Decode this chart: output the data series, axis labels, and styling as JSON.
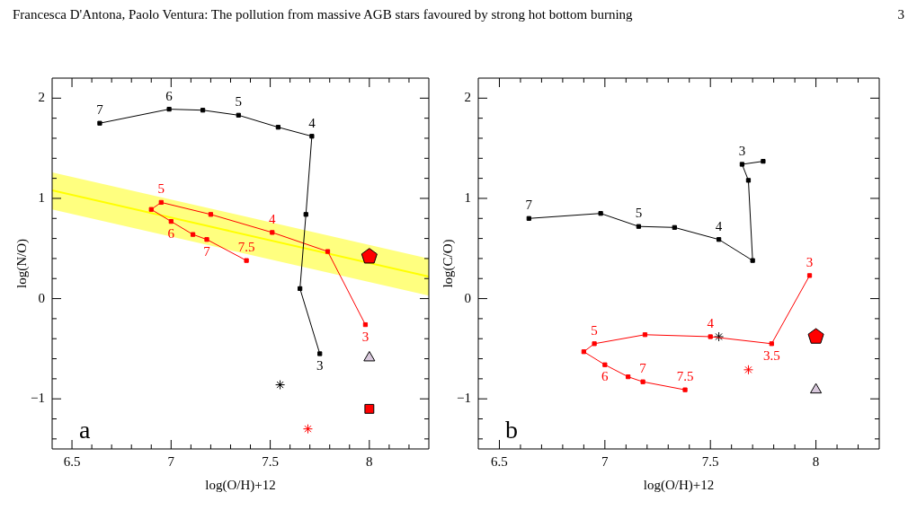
{
  "chart_data": [
    {
      "type": "line",
      "title": "Francesca D'Antona, Paolo Ventura: The pollution from massive AGB stars favoured by strong hot bottom burning",
      "xlabel": "log(O/H)+12",
      "ylabel": "log(N/O)",
      "xlim": [
        6.4,
        8.3
      ],
      "ylim": [
        -1.5,
        2.2
      ],
      "xticks": [
        {
          "value": 6.5,
          "label": "6.5"
        },
        {
          "value": 6.6,
          "label": null
        },
        {
          "value": 6.7,
          "label": null
        },
        {
          "value": 6.8,
          "label": null
        },
        {
          "value": 6.9,
          "label": null
        },
        7,
        {
          "value": 7.1,
          "label": null
        },
        {
          "value": 7.2,
          "label": null
        },
        {
          "value": 7.3,
          "label": null
        },
        {
          "value": 7.4,
          "label": null
        },
        7.5,
        {
          "value": 7.6,
          "label": null
        },
        {
          "value": 7.7,
          "label": null
        },
        {
          "value": 7.8,
          "label": null
        },
        {
          "value": 7.9,
          "label": null
        },
        8,
        {
          "value": 8.1,
          "label": null
        },
        {
          "value": 8.2,
          "label": null
        }
      ],
      "yticks": [
        {
          "value": -1.4,
          "label": null
        },
        {
          "value": -1.2,
          "label": null
        },
        {
          "value": -1,
          "label": "−1"
        },
        {
          "value": -0.8,
          "label": null
        },
        {
          "value": -0.6,
          "label": null
        },
        {
          "value": -0.4,
          "label": null
        },
        {
          "value": -0.2,
          "label": null
        },
        0,
        {
          "value": 0.2,
          "label": null
        },
        {
          "value": 0.4,
          "label": null
        },
        {
          "value": 0.6,
          "label": null
        },
        {
          "value": 0.8,
          "label": null
        },
        1,
        {
          "value": 1.2,
          "label": null
        },
        {
          "value": 1.4,
          "label": null
        },
        {
          "value": 1.6,
          "label": null
        },
        {
          "value": 1.8,
          "label": null
        },
        2
      ],
      "grid": false,
      "legend": false,
      "line_style": "solid",
      "series": [
        {
          "marker": "none",
          "color": "#ffff00",
          "x": [
            6.4,
            8.3
          ],
          "values": [
            1.08,
            0.22
          ],
          "lower": [
            0.89,
            0.03
          ],
          "upper": [
            1.26,
            0.4
          ]
        },
        {
          "marker": "square",
          "color": "#000000",
          "x": [
            6.64,
            6.99,
            7.16,
            7.34,
            7.54,
            7.71,
            7.68,
            7.65,
            7.75
          ],
          "values": [
            1.75,
            1.89,
            1.88,
            1.83,
            1.71,
            1.62,
            0.84,
            0.1,
            -0.55
          ]
        },
        {
          "marker": "square",
          "color": "#ff0000",
          "x": [
            7.38,
            7.18,
            7.11,
            7.0,
            6.9,
            6.95,
            7.2,
            7.51,
            7.79,
            7.98
          ],
          "values": [
            0.38,
            0.59,
            0.64,
            0.77,
            0.89,
            0.96,
            0.84,
            0.66,
            0.47,
            -0.26
          ]
        },
        {
          "type": "scatter",
          "color": "#ff0000",
          "x": [
            8.0
          ],
          "values": [
            0.42
          ]
        },
        {
          "type": "scatter",
          "marker": "triangle",
          "color": "#d8c8dc",
          "x": [
            8.0
          ],
          "values": [
            -0.59
          ]
        },
        {
          "type": "scatter",
          "marker": "cross",
          "color": "#000000",
          "x": [
            7.55
          ],
          "values": [
            -0.86
          ]
        },
        {
          "type": "scatter",
          "marker": "cross",
          "color": "#ff0000",
          "x": [
            7.69
          ],
          "values": [
            -1.3
          ]
        },
        {
          "type": "scatter",
          "marker": "square",
          "color": "#ff0000",
          "x": [
            8.0
          ],
          "values": [
            -1.1
          ]
        }
      ],
      "annotations": [
        "3",
        "a",
        {
          "text": "7",
          "x": 6.64,
          "y": 1.75
        },
        {
          "text": "6",
          "x": 6.99,
          "y": 1.89
        },
        {
          "text": "5",
          "x": 7.34,
          "y": 1.83
        },
        {
          "text": "4",
          "x": 7.71,
          "y": 1.62
        },
        {
          "text": "3",
          "x": 7.75,
          "y": -0.55
        },
        {
          "text": "7.5",
          "x": 7.38,
          "y": 0.38
        },
        {
          "text": "7",
          "x": 7.18,
          "y": 0.59
        },
        {
          "text": "6",
          "x": 7.0,
          "y": 0.77
        },
        {
          "text": "5",
          "x": 6.95,
          "y": 0.96
        },
        {
          "text": "4",
          "x": 7.51,
          "y": 0.66
        },
        {
          "text": "3",
          "x": 7.98,
          "y": -0.26
        }
      ]
    },
    {
      "type": "line",
      "xlabel": "log(O/H)+12",
      "ylabel": "log(C/O)",
      "xlim": [
        6.4,
        8.3
      ],
      "ylim": [
        -1.5,
        2.2
      ],
      "xticks": [
        {
          "value": 6.5,
          "label": "6.5"
        },
        {
          "value": 6.6,
          "label": null
        },
        {
          "value": 6.7,
          "label": null
        },
        {
          "value": 6.8,
          "label": null
        },
        {
          "value": 6.9,
          "label": null
        },
        7,
        {
          "value": 7.1,
          "label": null
        },
        {
          "value": 7.2,
          "label": null
        },
        {
          "value": 7.3,
          "label": null
        },
        {
          "value": 7.4,
          "label": null
        },
        7.5,
        {
          "value": 7.6,
          "label": null
        },
        {
          "value": 7.7,
          "label": null
        },
        {
          "value": 7.8,
          "label": null
        },
        {
          "value": 7.9,
          "label": null
        },
        8,
        {
          "value": 8.1,
          "label": null
        },
        {
          "value": 8.2,
          "label": null
        }
      ],
      "yticks": [
        {
          "value": -1.4,
          "label": null
        },
        {
          "value": -1.2,
          "label": null
        },
        {
          "value": -1,
          "label": "−1"
        },
        {
          "value": -0.8,
          "label": null
        },
        {
          "value": -0.6,
          "label": null
        },
        {
          "value": -0.4,
          "label": null
        },
        {
          "value": -0.2,
          "label": null
        },
        0,
        {
          "value": 0.2,
          "label": null
        },
        {
          "value": 0.4,
          "label": null
        },
        {
          "value": 0.6,
          "label": null
        },
        {
          "value": 0.8,
          "label": null
        },
        1,
        {
          "value": 1.2,
          "label": null
        },
        {
          "value": 1.4,
          "label": null
        },
        {
          "value": 1.6,
          "label": null
        },
        {
          "value": 1.8,
          "label": null
        },
        2
      ],
      "grid": false,
      "legend": false,
      "line_style": "solid",
      "series": [
        {
          "marker": "square",
          "color": "#000000",
          "x": [
            6.64,
            6.98,
            7.16,
            7.33,
            7.54,
            7.7,
            7.68,
            7.65,
            7.75
          ],
          "values": [
            0.8,
            0.85,
            0.72,
            0.71,
            0.59,
            0.38,
            1.18,
            1.34,
            1.37
          ]
        },
        {
          "marker": "square",
          "color": "#ff0000",
          "x": [
            7.38,
            7.18,
            7.11,
            7.0,
            6.9,
            6.95,
            7.19,
            7.5,
            7.79,
            7.97
          ],
          "values": [
            -0.91,
            -0.83,
            -0.78,
            -0.66,
            -0.53,
            -0.45,
            -0.36,
            -0.38,
            -0.45,
            0.23
          ]
        },
        {
          "type": "scatter",
          "marker": "cross",
          "color": "#000000",
          "x": [
            7.54
          ],
          "values": [
            -0.38
          ]
        },
        {
          "type": "scatter",
          "color": "#ff0000",
          "x": [
            8.0
          ],
          "values": [
            -0.38
          ]
        },
        {
          "type": "scatter",
          "marker": "cross",
          "color": "#ff0000",
          "x": [
            7.68
          ],
          "values": [
            -0.71
          ]
        },
        {
          "type": "scatter",
          "marker": "triangle",
          "color": "#d8c8dc",
          "x": [
            8.0
          ],
          "values": [
            -0.91
          ]
        }
      ],
      "annotations": [
        "b",
        {
          "text": "7",
          "x": 6.64,
          "y": 0.8
        },
        {
          "text": "5",
          "x": 7.16,
          "y": 0.72
        },
        {
          "text": "4",
          "x": 7.54,
          "y": 0.59
        },
        {
          "text": "3",
          "x": 7.65,
          "y": 1.34
        },
        {
          "text": "7.5",
          "x": 7.38,
          "y": -0.91
        },
        {
          "text": "7",
          "x": 7.18,
          "y": -0.83
        },
        {
          "text": "6",
          "x": 7.0,
          "y": -0.66
        },
        {
          "text": "5",
          "x": 6.95,
          "y": -0.45
        },
        {
          "text": "4",
          "x": 7.5,
          "y": -0.38
        },
        {
          "text": "3.5",
          "x": 7.79,
          "y": -0.45
        },
        {
          "text": "3",
          "x": 7.97,
          "y": 0.23
        }
      ]
    }
  ]
}
